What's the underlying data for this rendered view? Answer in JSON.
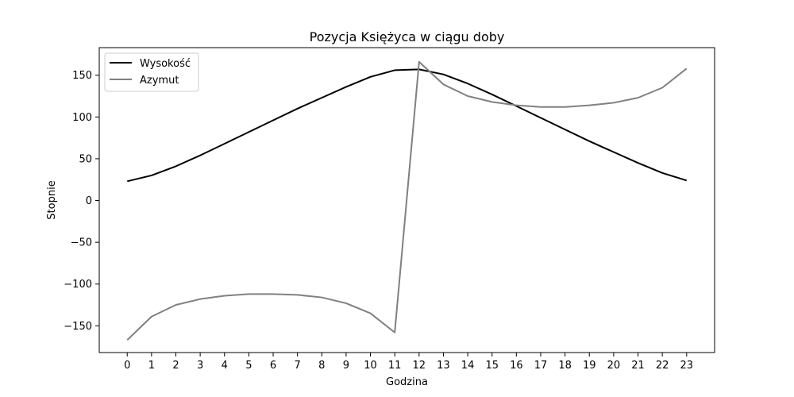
{
  "chart_data": {
    "type": "line",
    "title": "Pozycja Księżyca w ciągu doby",
    "xlabel": "Godzina",
    "ylabel": "Stopnie",
    "x": [
      0,
      1,
      2,
      3,
      4,
      5,
      6,
      7,
      8,
      9,
      10,
      11,
      12,
      13,
      14,
      15,
      16,
      17,
      18,
      19,
      20,
      21,
      22,
      23
    ],
    "xticks": [
      0,
      1,
      2,
      3,
      4,
      5,
      6,
      7,
      8,
      9,
      10,
      11,
      12,
      13,
      14,
      15,
      16,
      17,
      18,
      19,
      20,
      21,
      22,
      23
    ],
    "yticks": [
      -150,
      -100,
      -50,
      0,
      50,
      100,
      150
    ],
    "xlim": [
      -1.15,
      24.15
    ],
    "ylim": [
      -182,
      183
    ],
    "grid": false,
    "legend_position": "top-left",
    "series": [
      {
        "name": "Wysokość",
        "color": "#000000",
        "values": [
          23,
          30,
          41,
          54,
          68,
          82,
          96,
          110,
          123,
          136,
          148,
          156,
          157,
          151,
          140,
          127,
          113,
          99,
          85,
          71,
          58,
          45,
          33,
          24
        ]
      },
      {
        "name": "Azymut",
        "color": "#808080",
        "values": [
          -167,
          -139,
          -125,
          -118,
          -114,
          -112,
          -112,
          -113,
          -116,
          -123,
          -135,
          -158,
          166,
          139,
          125,
          118,
          114,
          112,
          112,
          114,
          117,
          123,
          135,
          158
        ]
      }
    ]
  }
}
